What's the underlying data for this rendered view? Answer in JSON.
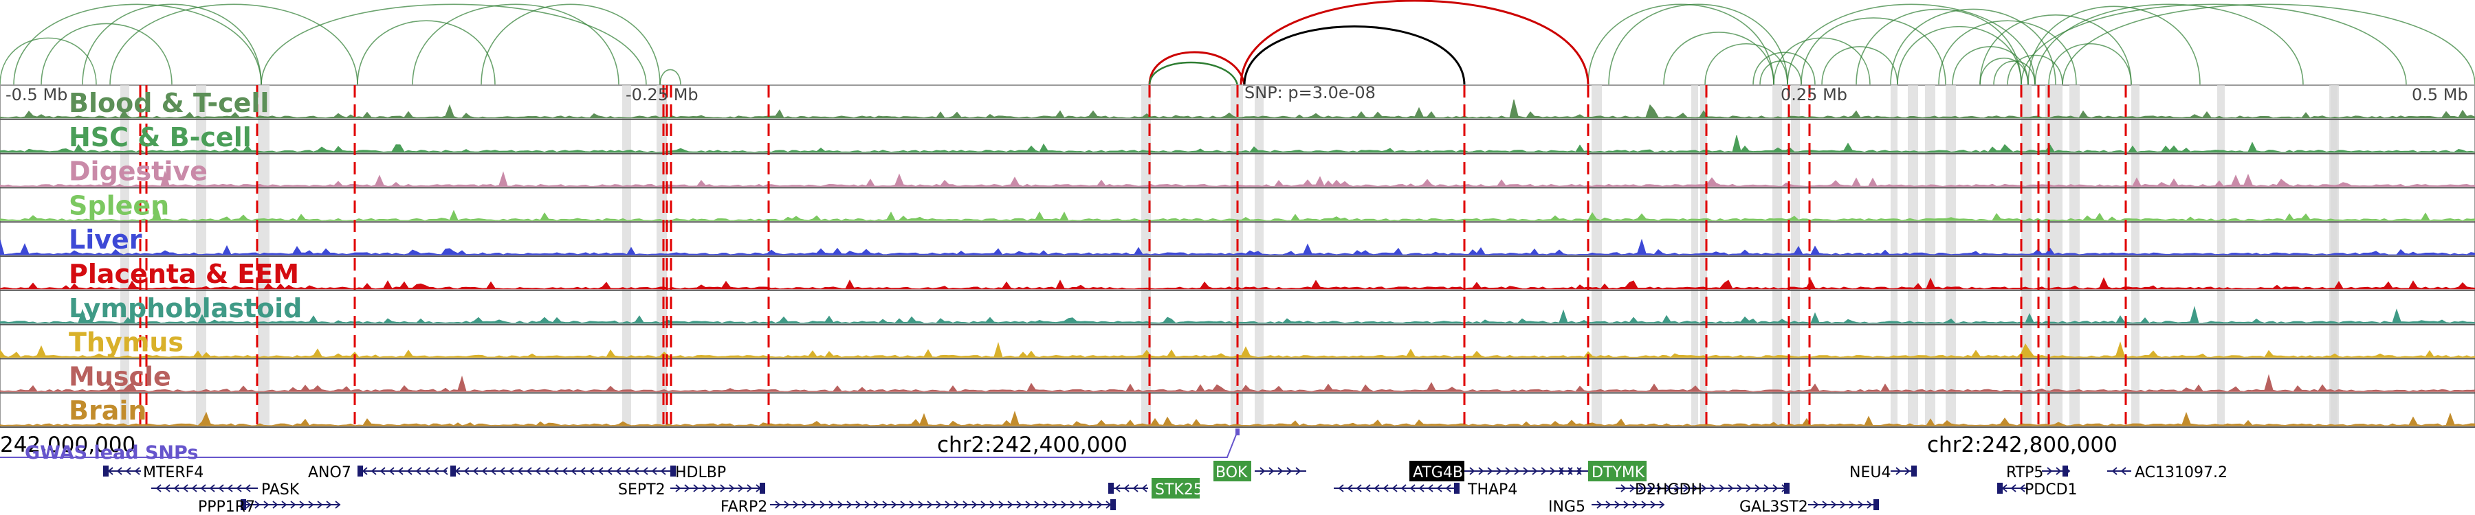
{
  "browser": {
    "scale_labels": {
      "left_outer": "-0.5 Mb",
      "left_inner": "-0.25 Mb",
      "right_inner": "0.25 Mb",
      "right_outer": "0.5 Mb"
    },
    "snp_label": "SNP: p=3.0e-08",
    "coordinates": {
      "left": "242,000,000",
      "center": "chr2:242,400,000",
      "right": "chr2:242,800,000"
    },
    "gwas_label": "GWAS lead SNPs",
    "colors": {
      "arc_green": "#2e7d32",
      "arc_red": "#cc0000",
      "arc_black": "#000000",
      "highlight_line": "#e00000",
      "gwas": "#6655cc",
      "gene": "#1a1a6e"
    }
  },
  "tracks": [
    {
      "label": "Blood & T-cell",
      "color": "#5c8f57"
    },
    {
      "label": "HSC & B-cell",
      "color": "#4a9e58"
    },
    {
      "label": "Digestive",
      "color": "#c98aa8"
    },
    {
      "label": "Spleen",
      "color": "#7bc860"
    },
    {
      "label": "Liver",
      "color": "#3d49d6"
    },
    {
      "label": "Placenta & EEM",
      "color": "#d40b10"
    },
    {
      "label": "Lymphoblastoid",
      "color": "#3f9a86"
    },
    {
      "label": "Thymus",
      "color": "#d9b12a"
    },
    {
      "label": "Muscle",
      "color": "#b8605e"
    },
    {
      "label": "Brain",
      "color": "#c28c2c"
    }
  ],
  "genes": [
    {
      "name": "MTERF4",
      "boxed": false
    },
    {
      "name": "ANO7",
      "boxed": false
    },
    {
      "name": "HDLBP",
      "boxed": false
    },
    {
      "name": "PASK",
      "boxed": false
    },
    {
      "name": "PPP1R7",
      "boxed": false
    },
    {
      "name": "SEPT2",
      "boxed": false
    },
    {
      "name": "FARP2",
      "boxed": false
    },
    {
      "name": "BOK",
      "boxed": true,
      "box_color": "#3f9a3f"
    },
    {
      "name": "STK25",
      "boxed": true,
      "box_color": "#3f9a3f"
    },
    {
      "name": "ATG4B",
      "boxed": true,
      "box_color": "#000000"
    },
    {
      "name": "THAP4",
      "boxed": false
    },
    {
      "name": "DTYMK",
      "boxed": true,
      "box_color": "#3f9a3f"
    },
    {
      "name": "ING5",
      "boxed": false
    },
    {
      "name": "D2HGDH",
      "boxed": false
    },
    {
      "name": "NEU4",
      "boxed": false
    },
    {
      "name": "GAL3ST2",
      "boxed": false
    },
    {
      "name": "RTP5",
      "boxed": false
    },
    {
      "name": "PDCD1",
      "boxed": false
    },
    {
      "name": "AC131097.2",
      "boxed": false
    }
  ]
}
